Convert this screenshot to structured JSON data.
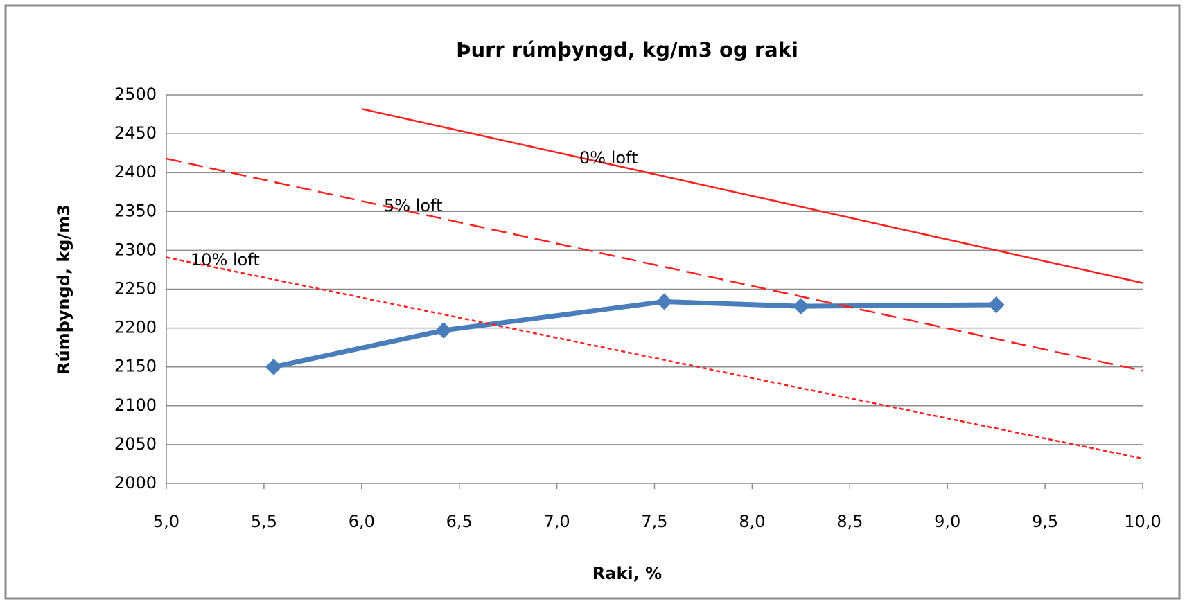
{
  "chart_data": {
    "type": "line",
    "title": "Þurr rúmþyngd, kg/m3 og raki",
    "x_label": "Raki, %",
    "y_label": "Rúmþyngd, kg/m3",
    "xlim": [
      5,
      10
    ],
    "xticks": [
      {
        "value": 5,
        "label": "5,0"
      },
      {
        "value": 5.5,
        "label": "5,5"
      },
      {
        "value": 6,
        "label": "6,0"
      },
      {
        "value": 6.5,
        "label": "6,5"
      },
      {
        "value": 7,
        "label": "7,0"
      },
      {
        "value": 7.5,
        "label": "7,5"
      },
      {
        "value": 8,
        "label": "8,0"
      },
      {
        "value": 8.5,
        "label": "8,5"
      },
      {
        "value": 9,
        "label": "9,0"
      },
      {
        "value": 9.5,
        "label": "9,5"
      },
      {
        "value": 10,
        "label": "10,0"
      }
    ],
    "ylim": [
      2000,
      2500
    ],
    "yticks": [
      2000,
      2050,
      2100,
      2150,
      2200,
      2250,
      2300,
      2350,
      2400,
      2450,
      2500
    ],
    "grid": true,
    "series": [
      {
        "color": "#4a7ebb",
        "dash": "solid",
        "markers": true,
        "x": [
          5.55,
          6.42,
          7.55,
          8.25,
          9.25
        ],
        "values": [
          2150,
          2197,
          2234,
          2228,
          2230
        ]
      },
      {
        "name": "0% loft",
        "color": "#ff2020",
        "dash": "solid",
        "markers": false,
        "x": [
          6.0,
          10.0
        ],
        "values": [
          2482,
          2258
        ]
      },
      {
        "name": "5% loft",
        "color": "#ff2020",
        "dash": "dashed",
        "markers": false,
        "x": [
          5.0,
          10.0
        ],
        "values": [
          2418,
          2145
        ]
      },
      {
        "name": "10% loft",
        "color": "#ff2020",
        "dash": "dotted",
        "markers": false,
        "x": [
          5.0,
          10.0
        ],
        "values": [
          2291,
          2032
        ]
      }
    ]
  }
}
